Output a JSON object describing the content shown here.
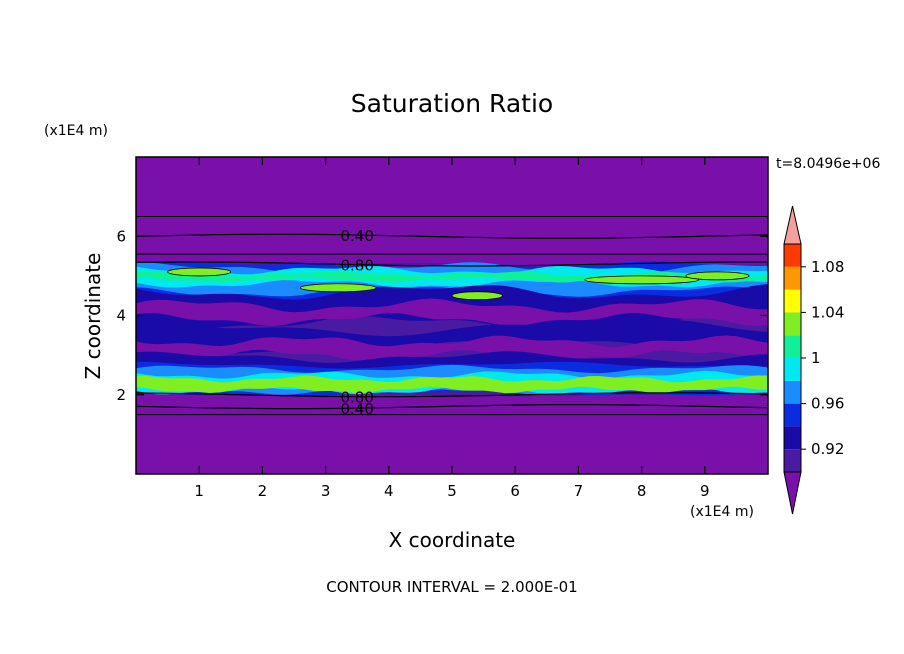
{
  "chart_data": {
    "type": "heatmap",
    "title": "Saturation Ratio",
    "xlabel": "X coordinate",
    "ylabel": "Z coordinate",
    "x_unit": "(x1E4 m)",
    "y_unit": "(x1E4 m)",
    "xlim": [
      0,
      10
    ],
    "ylim": [
      0,
      8
    ],
    "x_ticks": [
      "1",
      "2",
      "3",
      "4",
      "5",
      "6",
      "7",
      "8",
      "9"
    ],
    "y_ticks": [
      "2",
      "4",
      "6"
    ],
    "time_label": "t=8.0496e+06",
    "footer": "CONTOUR INTERVAL = 2.000E-01",
    "colorbar": {
      "levels": [
        0.9,
        0.92,
        0.94,
        0.96,
        0.98,
        1.0,
        1.02,
        1.04,
        1.06,
        1.08,
        1.1
      ],
      "tick_labels": [
        "0.92",
        "0.96",
        "1",
        "1.04",
        "1.08"
      ],
      "tick_values": [
        0.92,
        0.96,
        1.0,
        1.04,
        1.08
      ],
      "colors": [
        "#4a1aa2",
        "#1a0aa8",
        "#0a2ce0",
        "#1a8cff",
        "#00e8f0",
        "#10f098",
        "#80ee20",
        "#ffff00",
        "#ff9800",
        "#ff3a00",
        "#ff0a0a"
      ],
      "under_color": "#7a10aa",
      "over_color": "#f4a0a0"
    },
    "contour_lines": [
      {
        "label": "0.40",
        "z": 6.0,
        "x": 3.5
      },
      {
        "label": "0.80",
        "z": 5.3,
        "x": 3.5
      },
      {
        "label": "0.80",
        "z": 2.0,
        "x": 3.5
      },
      {
        "label": "0.40",
        "z": 1.7,
        "x": 3.5
      }
    ],
    "regions": {
      "background": "#7a10aa",
      "moist_layer_z": [
        2.0,
        5.3
      ]
    }
  }
}
